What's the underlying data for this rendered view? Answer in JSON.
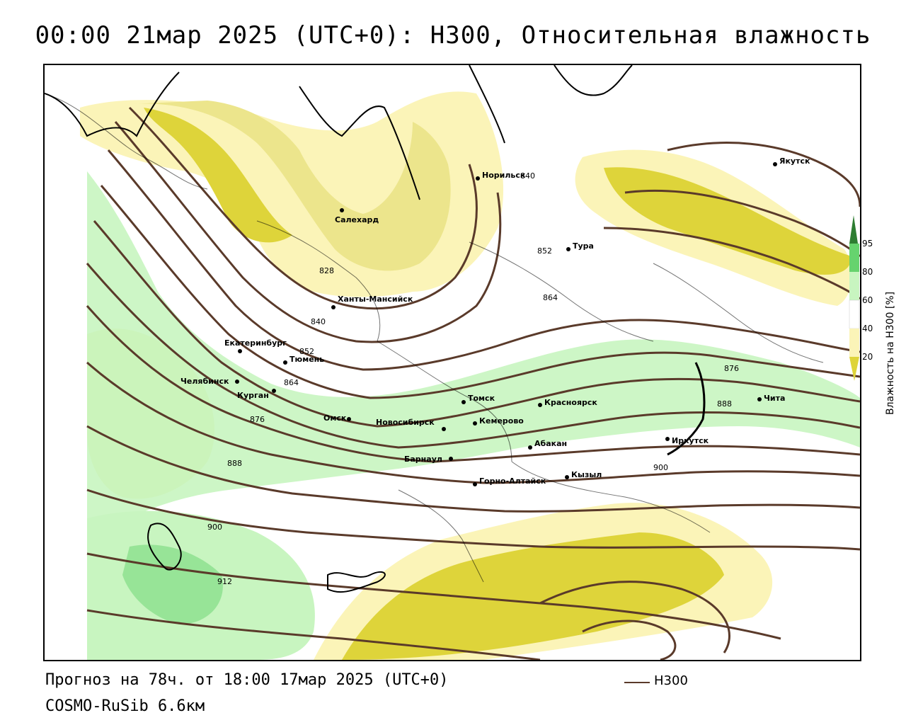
{
  "title": "00:00 21мар 2025 (UTC+0): H300, Относительная влажность",
  "footer": {
    "forecast": "Прогноз на 78ч. от 18:00 17мар 2025 (UTC+0)",
    "model": "COSMO-RuSib 6.6км"
  },
  "line_key": {
    "label": "H300",
    "color": "#5a3a2a"
  },
  "legend": {
    "title": "Влажность на H300 [%]",
    "ticks": [
      "95",
      "80",
      "60",
      "40",
      "20"
    ],
    "colors": {
      "c95": "#2e7d32",
      "c80_95": "#66d36e",
      "c60_80": "#c8f5c0",
      "c40_60": "#fbf4b8",
      "c20_40": "#ece58c",
      "c0_20": "#ded43a"
    }
  },
  "map": {
    "cities": [
      {
        "name": "Якутск"
      },
      {
        "name": "Норильск"
      },
      {
        "name": "Салехард"
      },
      {
        "name": "Тура"
      },
      {
        "name": "Ханты-Мансийск"
      },
      {
        "name": "Екатеринбург"
      },
      {
        "name": "Тюмень"
      },
      {
        "name": "Челябинск"
      },
      {
        "name": "Курган"
      },
      {
        "name": "Омск"
      },
      {
        "name": "Новосибирск"
      },
      {
        "name": "Томск"
      },
      {
        "name": "Кемерово"
      },
      {
        "name": "Красноярск"
      },
      {
        "name": "Абакан"
      },
      {
        "name": "Барнаул"
      },
      {
        "name": "Горно-Алтайск"
      },
      {
        "name": "Кызыл"
      },
      {
        "name": "Иркутск"
      },
      {
        "name": "Чита"
      }
    ],
    "contour_labels": [
      "828",
      "840",
      "852",
      "864",
      "876",
      "888",
      "900",
      "912",
      "840",
      "852",
      "864",
      "876",
      "888",
      "900"
    ]
  }
}
